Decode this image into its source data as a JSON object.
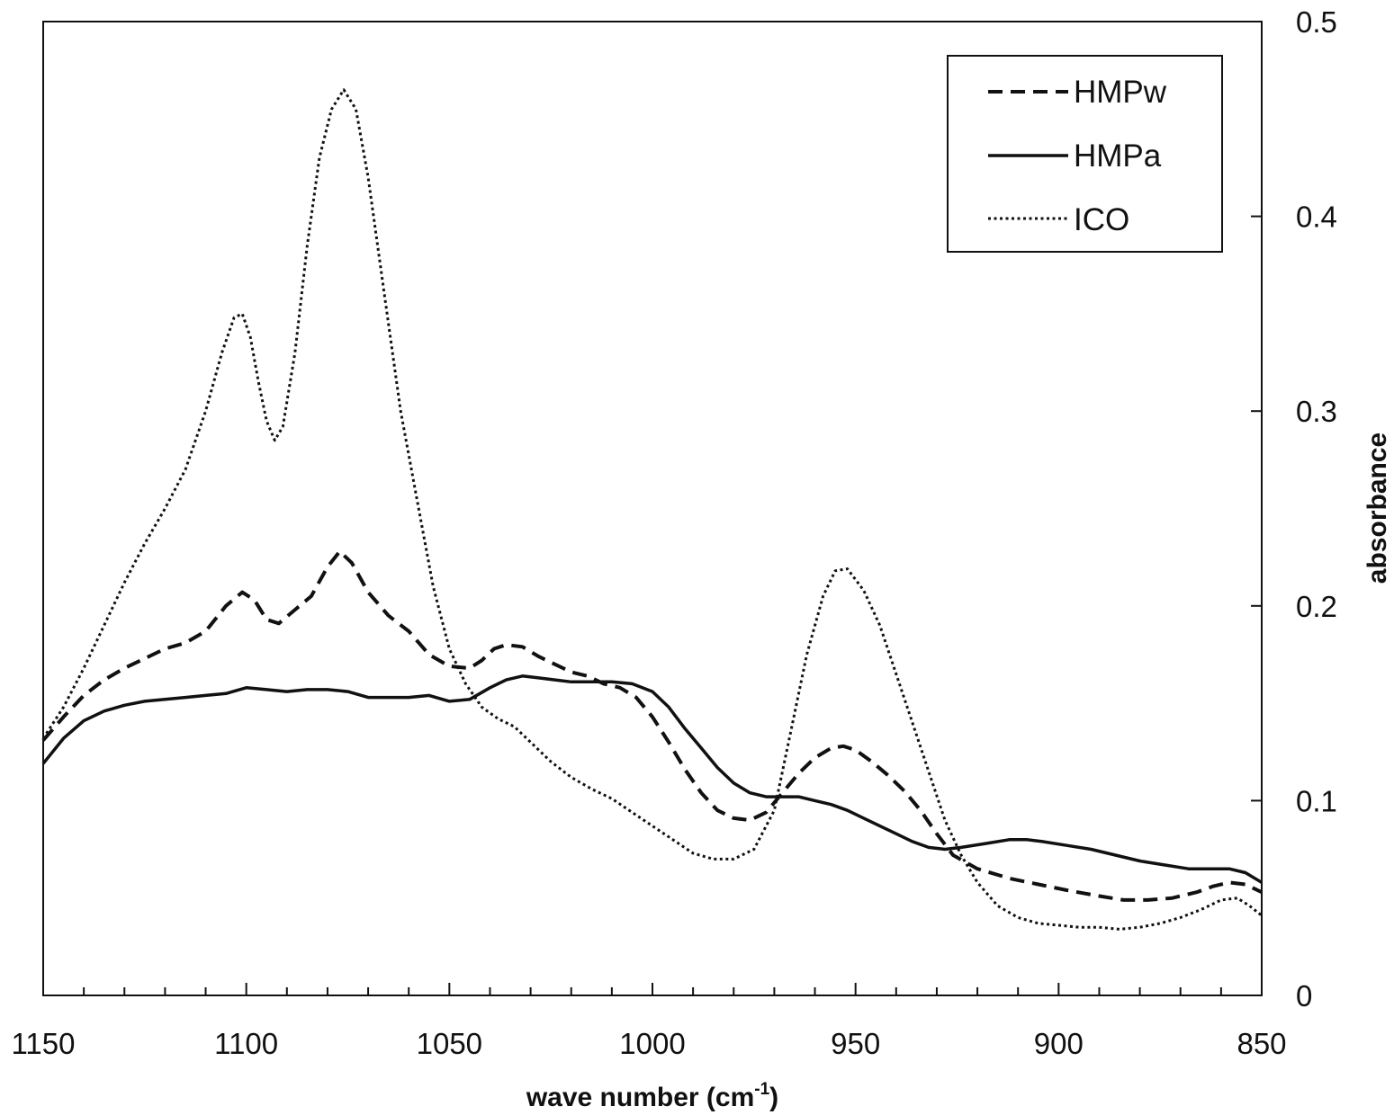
{
  "chart_data": {
    "type": "line",
    "xlabel": "wave number (cm",
    "xlabel_sup": "-1",
    "xlabel_suffix": ")",
    "ylabel": "absorbance",
    "xlim": [
      1150,
      850
    ],
    "x_reversed": true,
    "ylim": [
      0,
      0.5
    ],
    "y_axis_side": "right",
    "x_ticks": [
      1150,
      1100,
      1050,
      1000,
      950,
      900,
      850
    ],
    "x_tick_labels": [
      "1150",
      "1100",
      "1050",
      "1000",
      "950",
      "900",
      "850"
    ],
    "y_ticks": [
      0,
      0.1,
      0.2,
      0.3,
      0.4,
      0.5
    ],
    "y_tick_labels": [
      "0",
      "0.1",
      "0.2",
      "0.3",
      "0.4",
      "0.5"
    ],
    "grid": false,
    "legend_position": "top-right",
    "series": [
      {
        "name": "HMPw",
        "style": "dashed",
        "color": "#111111",
        "x": [
          1150,
          1145,
          1140,
          1135,
          1130,
          1125,
          1120,
          1115,
          1110,
          1105,
          1101,
          1098,
          1095,
          1092,
          1088,
          1084,
          1080,
          1077,
          1074,
          1070,
          1065,
          1060,
          1055,
          1050,
          1045,
          1042,
          1039,
          1036,
          1032,
          1028,
          1024,
          1020,
          1016,
          1012,
          1008,
          1004,
          1000,
          996,
          992,
          988,
          984,
          980,
          976,
          972,
          968,
          964,
          960,
          956,
          953,
          950,
          946,
          942,
          938,
          934,
          930,
          926,
          920,
          912,
          905,
          898,
          890,
          884,
          878,
          872,
          866,
          862,
          858,
          854,
          850
        ],
        "y": [
          0.131,
          0.143,
          0.154,
          0.162,
          0.168,
          0.173,
          0.178,
          0.181,
          0.187,
          0.2,
          0.207,
          0.203,
          0.193,
          0.191,
          0.198,
          0.205,
          0.22,
          0.228,
          0.222,
          0.207,
          0.195,
          0.187,
          0.175,
          0.169,
          0.168,
          0.172,
          0.178,
          0.18,
          0.179,
          0.174,
          0.17,
          0.166,
          0.164,
          0.16,
          0.158,
          0.153,
          0.143,
          0.13,
          0.116,
          0.104,
          0.095,
          0.091,
          0.09,
          0.094,
          0.104,
          0.114,
          0.122,
          0.127,
          0.128,
          0.126,
          0.12,
          0.113,
          0.105,
          0.095,
          0.083,
          0.072,
          0.065,
          0.06,
          0.057,
          0.054,
          0.051,
          0.049,
          0.049,
          0.05,
          0.053,
          0.056,
          0.058,
          0.057,
          0.053
        ]
      },
      {
        "name": "HMPa",
        "style": "solid",
        "color": "#111111",
        "x": [
          1150,
          1145,
          1140,
          1135,
          1130,
          1125,
          1120,
          1115,
          1110,
          1105,
          1100,
          1095,
          1090,
          1085,
          1080,
          1075,
          1070,
          1065,
          1060,
          1055,
          1050,
          1045,
          1040,
          1036,
          1032,
          1028,
          1024,
          1020,
          1015,
          1010,
          1005,
          1000,
          996,
          992,
          988,
          984,
          980,
          976,
          972,
          968,
          964,
          960,
          956,
          952,
          948,
          944,
          940,
          936,
          932,
          928,
          924,
          918,
          912,
          908,
          904,
          898,
          892,
          886,
          880,
          874,
          868,
          862,
          858,
          854,
          850
        ],
        "y": [
          0.119,
          0.132,
          0.141,
          0.146,
          0.149,
          0.151,
          0.152,
          0.153,
          0.154,
          0.155,
          0.158,
          0.157,
          0.156,
          0.157,
          0.157,
          0.156,
          0.153,
          0.153,
          0.153,
          0.154,
          0.151,
          0.152,
          0.158,
          0.162,
          0.164,
          0.163,
          0.162,
          0.161,
          0.161,
          0.161,
          0.16,
          0.156,
          0.148,
          0.137,
          0.127,
          0.117,
          0.109,
          0.104,
          0.102,
          0.102,
          0.102,
          0.1,
          0.098,
          0.095,
          0.091,
          0.087,
          0.083,
          0.079,
          0.076,
          0.075,
          0.076,
          0.078,
          0.08,
          0.08,
          0.079,
          0.077,
          0.075,
          0.072,
          0.069,
          0.067,
          0.065,
          0.065,
          0.065,
          0.063,
          0.058
        ]
      },
      {
        "name": "ICO",
        "style": "dotted",
        "color": "#111111",
        "x": [
          1150,
          1145,
          1140,
          1135,
          1130,
          1125,
          1120,
          1115,
          1110,
          1106,
          1103,
          1101,
          1099,
          1097,
          1095,
          1093,
          1091,
          1088,
          1085,
          1082,
          1079,
          1076,
          1073,
          1070,
          1066,
          1062,
          1058,
          1054,
          1050,
          1046,
          1042,
          1038,
          1034,
          1030,
          1025,
          1020,
          1015,
          1010,
          1005,
          1000,
          995,
          990,
          985,
          980,
          975,
          970,
          966,
          962,
          958,
          955,
          952,
          948,
          944,
          940,
          936,
          932,
          928,
          924,
          920,
          915,
          910,
          905,
          900,
          895,
          890,
          885,
          880,
          875,
          870,
          865,
          860,
          856,
          853,
          850
        ],
        "y": [
          0.132,
          0.148,
          0.168,
          0.19,
          0.212,
          0.232,
          0.25,
          0.27,
          0.3,
          0.33,
          0.348,
          0.35,
          0.338,
          0.315,
          0.295,
          0.285,
          0.292,
          0.33,
          0.385,
          0.43,
          0.455,
          0.465,
          0.455,
          0.42,
          0.36,
          0.3,
          0.255,
          0.21,
          0.178,
          0.16,
          0.148,
          0.142,
          0.138,
          0.13,
          0.12,
          0.112,
          0.106,
          0.101,
          0.094,
          0.087,
          0.08,
          0.073,
          0.07,
          0.07,
          0.075,
          0.095,
          0.135,
          0.175,
          0.205,
          0.218,
          0.219,
          0.208,
          0.19,
          0.165,
          0.14,
          0.115,
          0.09,
          0.072,
          0.058,
          0.046,
          0.04,
          0.037,
          0.036,
          0.035,
          0.035,
          0.034,
          0.035,
          0.037,
          0.04,
          0.044,
          0.049,
          0.05,
          0.046,
          0.041
        ]
      }
    ]
  }
}
